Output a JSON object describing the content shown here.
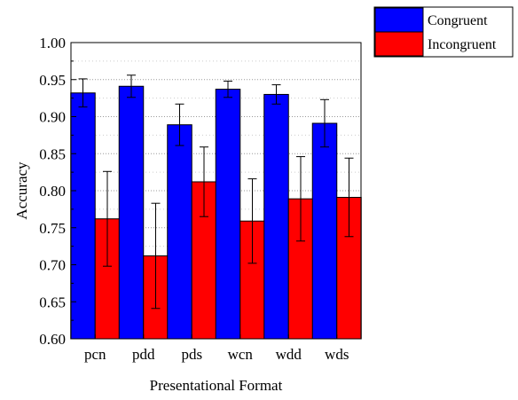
{
  "chart_data": {
    "type": "bar",
    "title": "",
    "xlabel": "Presentational Format",
    "ylabel": "Accuracy",
    "ylim": [
      0.6,
      1.0
    ],
    "yticks": [
      "0.60",
      "0.65",
      "0.70",
      "0.75",
      "0.80",
      "0.85",
      "0.90",
      "0.95",
      "1.00"
    ],
    "categories": [
      "pcn",
      "pdd",
      "pds",
      "wcn",
      "wdd",
      "wds"
    ],
    "grid": "horizontal dotted",
    "legend_position": "top-right",
    "series": [
      {
        "name": "Congruent",
        "color": "#0000FF",
        "values": [
          0.932,
          0.941,
          0.889,
          0.937,
          0.93,
          0.891
        ],
        "error": [
          0.019,
          0.015,
          0.028,
          0.011,
          0.013,
          0.032
        ]
      },
      {
        "name": "Incongruent",
        "color": "#FF0000",
        "values": [
          0.762,
          0.712,
          0.812,
          0.759,
          0.789,
          0.791
        ],
        "error": [
          0.064,
          0.071,
          0.047,
          0.057,
          0.057,
          0.053
        ]
      }
    ]
  }
}
